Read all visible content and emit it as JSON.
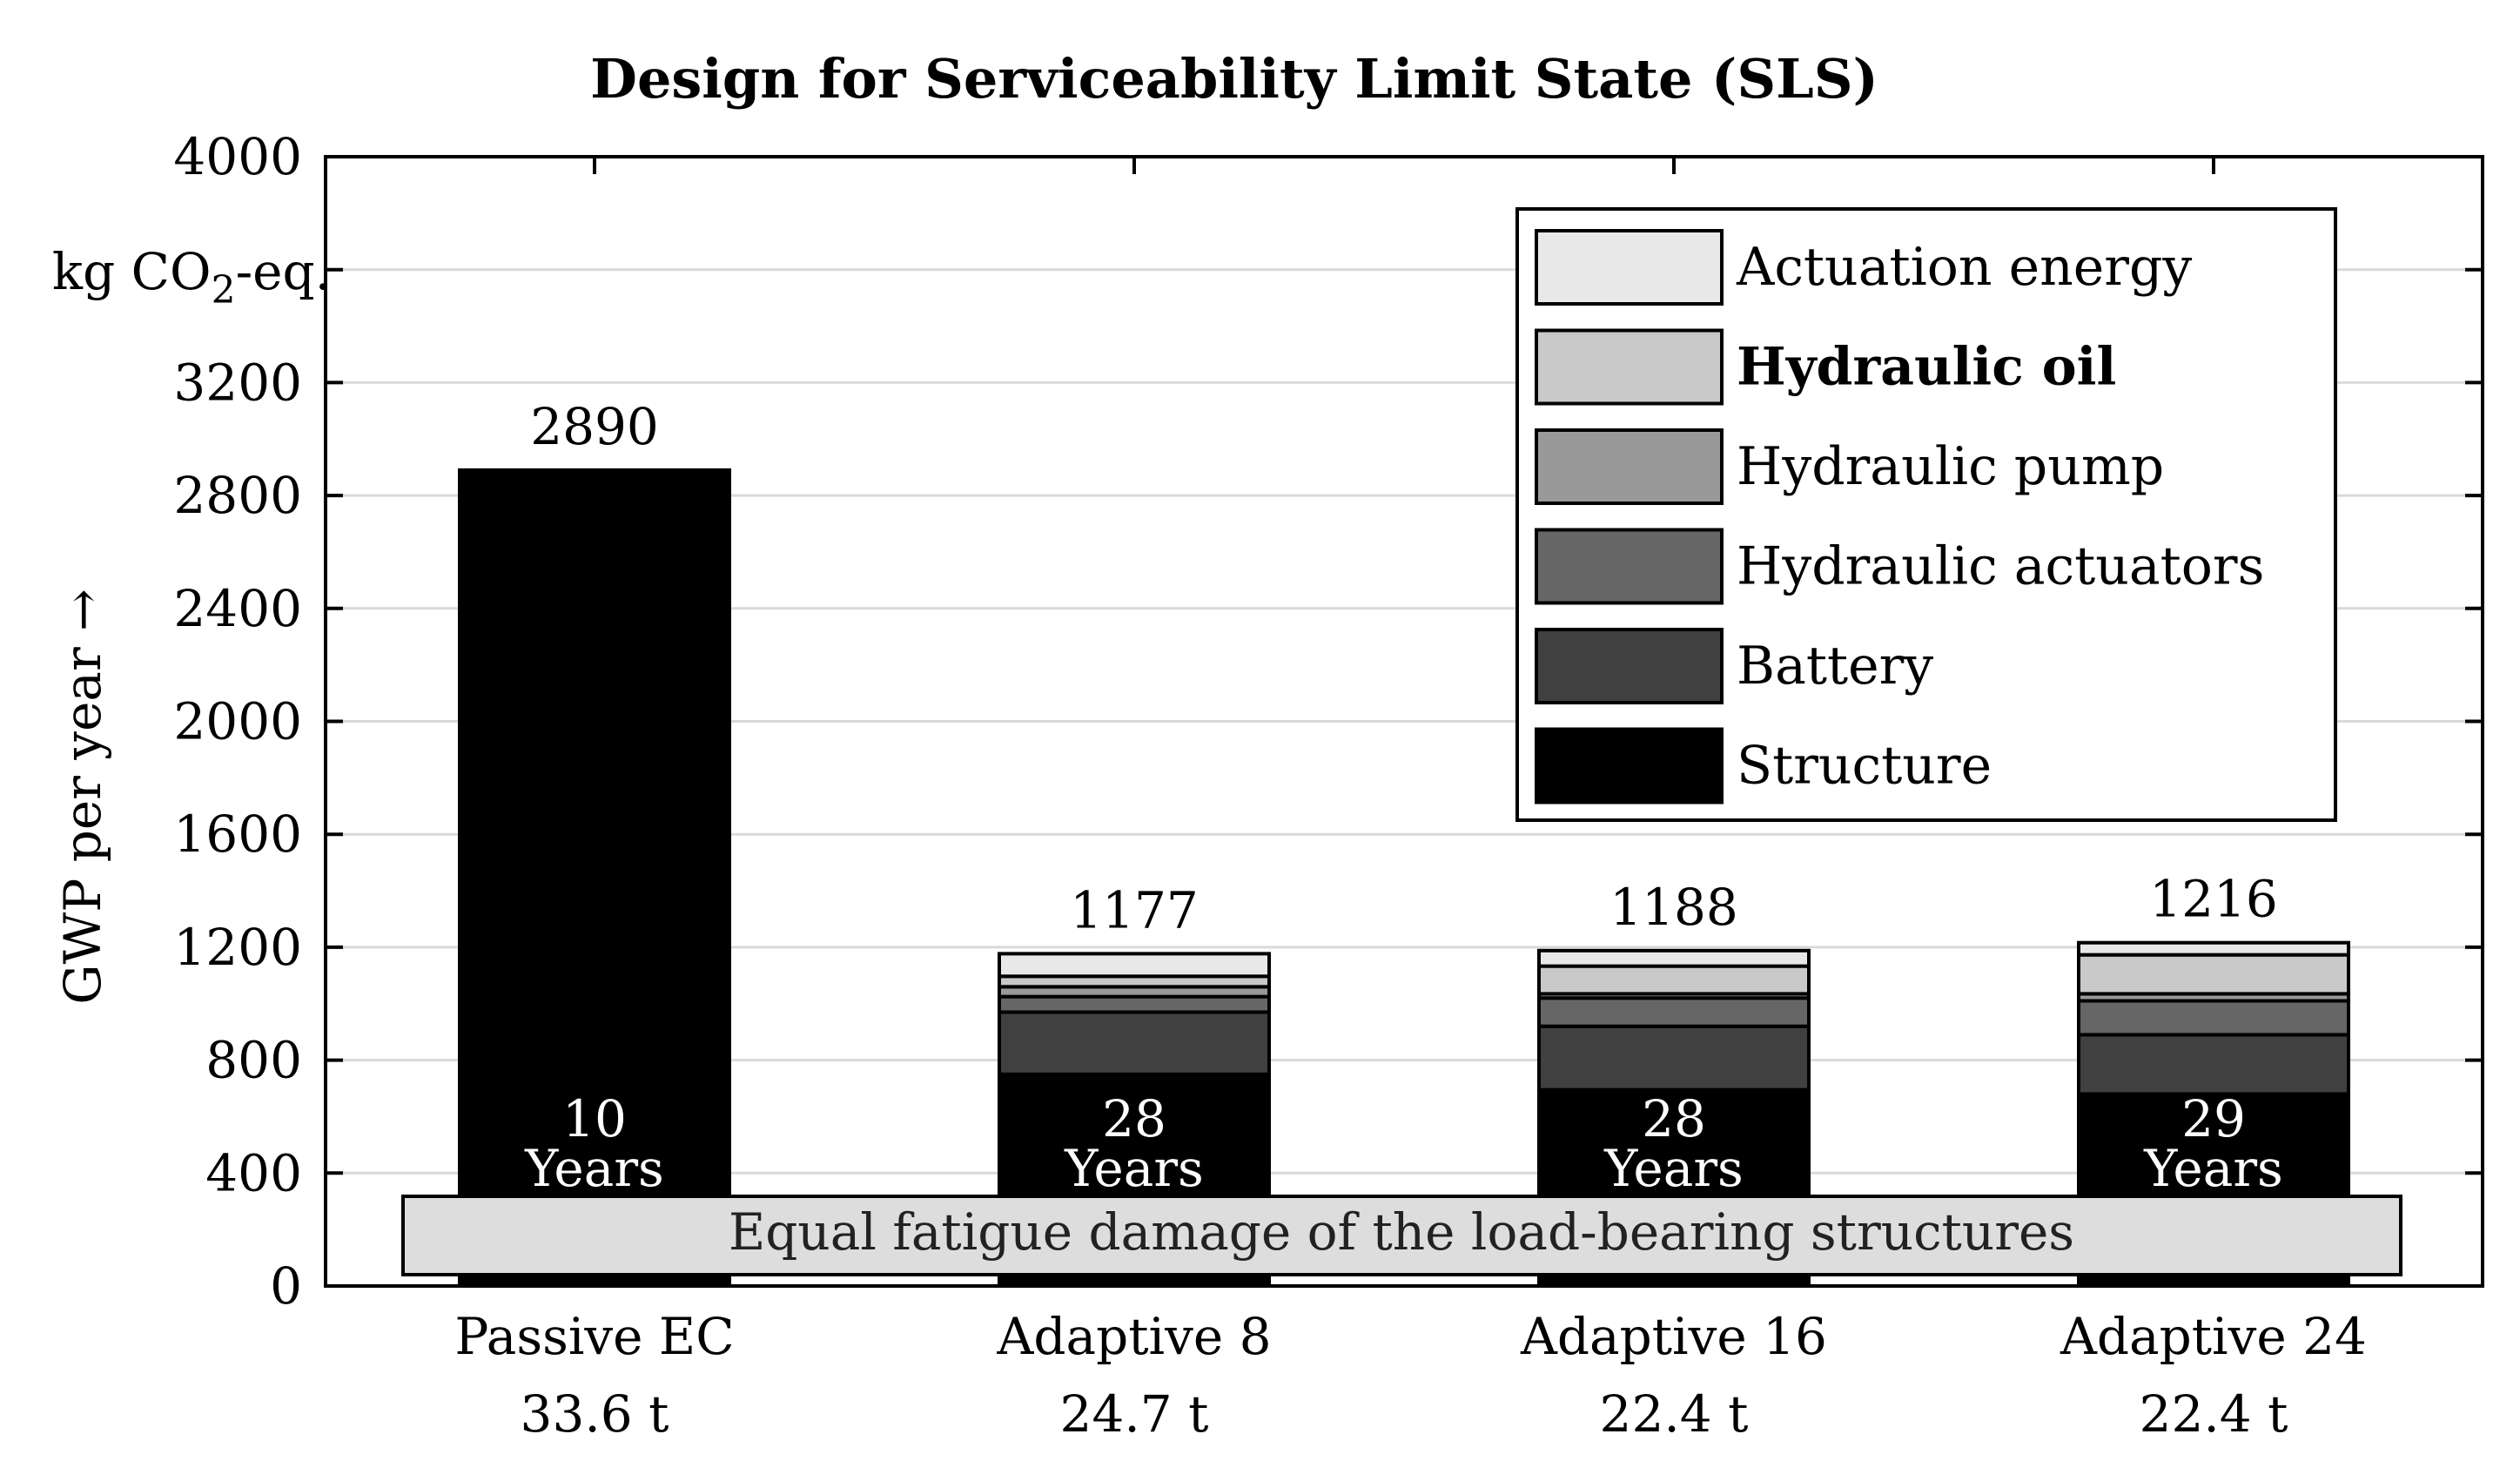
{
  "chart_data": {
    "type": "bar",
    "stacked": true,
    "title": "Design for Serviceability Limit State (SLS)",
    "ylabel": "GWP per year →",
    "unit_label": {
      "prefix": "kg CO",
      "sub": "2",
      "suffix": "-eq."
    },
    "ylim": [
      0,
      4000
    ],
    "yticks": [
      0,
      400,
      800,
      1200,
      1600,
      2000,
      2400,
      2800,
      3200,
      4000
    ],
    "ytick_labels": [
      "0",
      "400",
      "800",
      "1200",
      "1600",
      "2000",
      "2400",
      "2800",
      "3200",
      "4000"
    ],
    "grid": true,
    "legend_position": "top-right",
    "categories": [
      "Passive EC",
      "Adaptive 8",
      "Adaptive 16",
      "Adaptive 24"
    ],
    "masses": [
      "33.6 t",
      "24.7 t",
      "22.4 t",
      "22.4 t"
    ],
    "totals": [
      "2890",
      "1177",
      "1188",
      "1216"
    ],
    "lifetimes": [
      "10",
      "28",
      "28",
      "29"
    ],
    "lifetime_unit": "Years",
    "series": [
      {
        "name": "Structure",
        "color": "#000000",
        "values": [
          2890,
          750,
          695,
          680
        ]
      },
      {
        "name": "Battery",
        "color": "#404040",
        "values": [
          0,
          220,
          225,
          210
        ]
      },
      {
        "name": "Hydraulic actuators",
        "color": "#666666",
        "values": [
          0,
          55,
          100,
          120
        ]
      },
      {
        "name": "Hydraulic pump",
        "color": "#999999",
        "values": [
          0,
          35,
          15,
          25
        ]
      },
      {
        "name": "Hydraulic oil",
        "color": "#c9c9c9",
        "values": [
          0,
          37,
          98,
          138
        ]
      },
      {
        "name": "Actuation energy",
        "color": "#e8e8e8",
        "values": [
          0,
          80,
          55,
          43
        ]
      }
    ],
    "legend_bold": [
      "Hydraulic oil"
    ],
    "annotation": "Equal fatigue damage of the load-bearing structures"
  }
}
